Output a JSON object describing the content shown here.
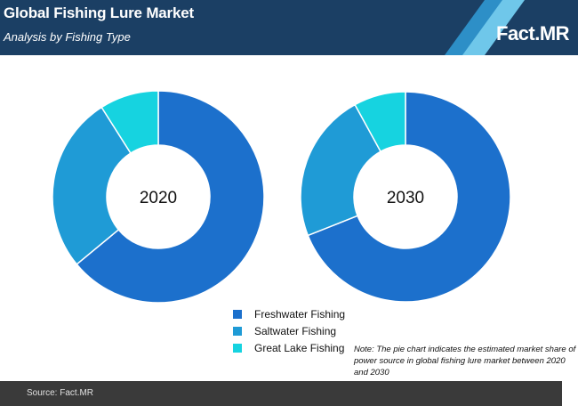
{
  "header": {
    "title": "Global Fishing Lure Market",
    "subtitle": "Analysis by Fishing Type",
    "logo": "Fact.MR",
    "colors": {
      "navy": "#1b3f64",
      "stripe_light": "#6fc7ea",
      "stripe_mid": "#3ba6d9",
      "stripe_dark": "#2d8fc7"
    }
  },
  "chart_data": [
    {
      "type": "pie",
      "style": "donut",
      "center_label": "2020",
      "categories": [
        "Freshwater Fishing",
        "Saltwater Fishing",
        "Great Lake Fishing"
      ],
      "values": [
        64,
        27,
        9
      ],
      "colors": [
        "#1c70cc",
        "#1f9bd6",
        "#16d3e0"
      ]
    },
    {
      "type": "pie",
      "style": "donut",
      "center_label": "2030",
      "categories": [
        "Freshwater Fishing",
        "Saltwater Fishing",
        "Great Lake Fishing"
      ],
      "values": [
        69,
        23,
        8
      ],
      "colors": [
        "#1c70cc",
        "#1f9bd6",
        "#16d3e0"
      ]
    }
  ],
  "legend": {
    "items": [
      {
        "label": "Freshwater Fishing",
        "color": "#1c70cc"
      },
      {
        "label": "Saltwater Fishing",
        "color": "#1f9bd6"
      },
      {
        "label": "Great Lake Fishing",
        "color": "#16d3e0"
      }
    ]
  },
  "note": "Note: The pie chart indicates the estimated market share of power source in global fishing lure market between 2020 and 2030",
  "footer": {
    "source": "Source: Fact.MR"
  }
}
